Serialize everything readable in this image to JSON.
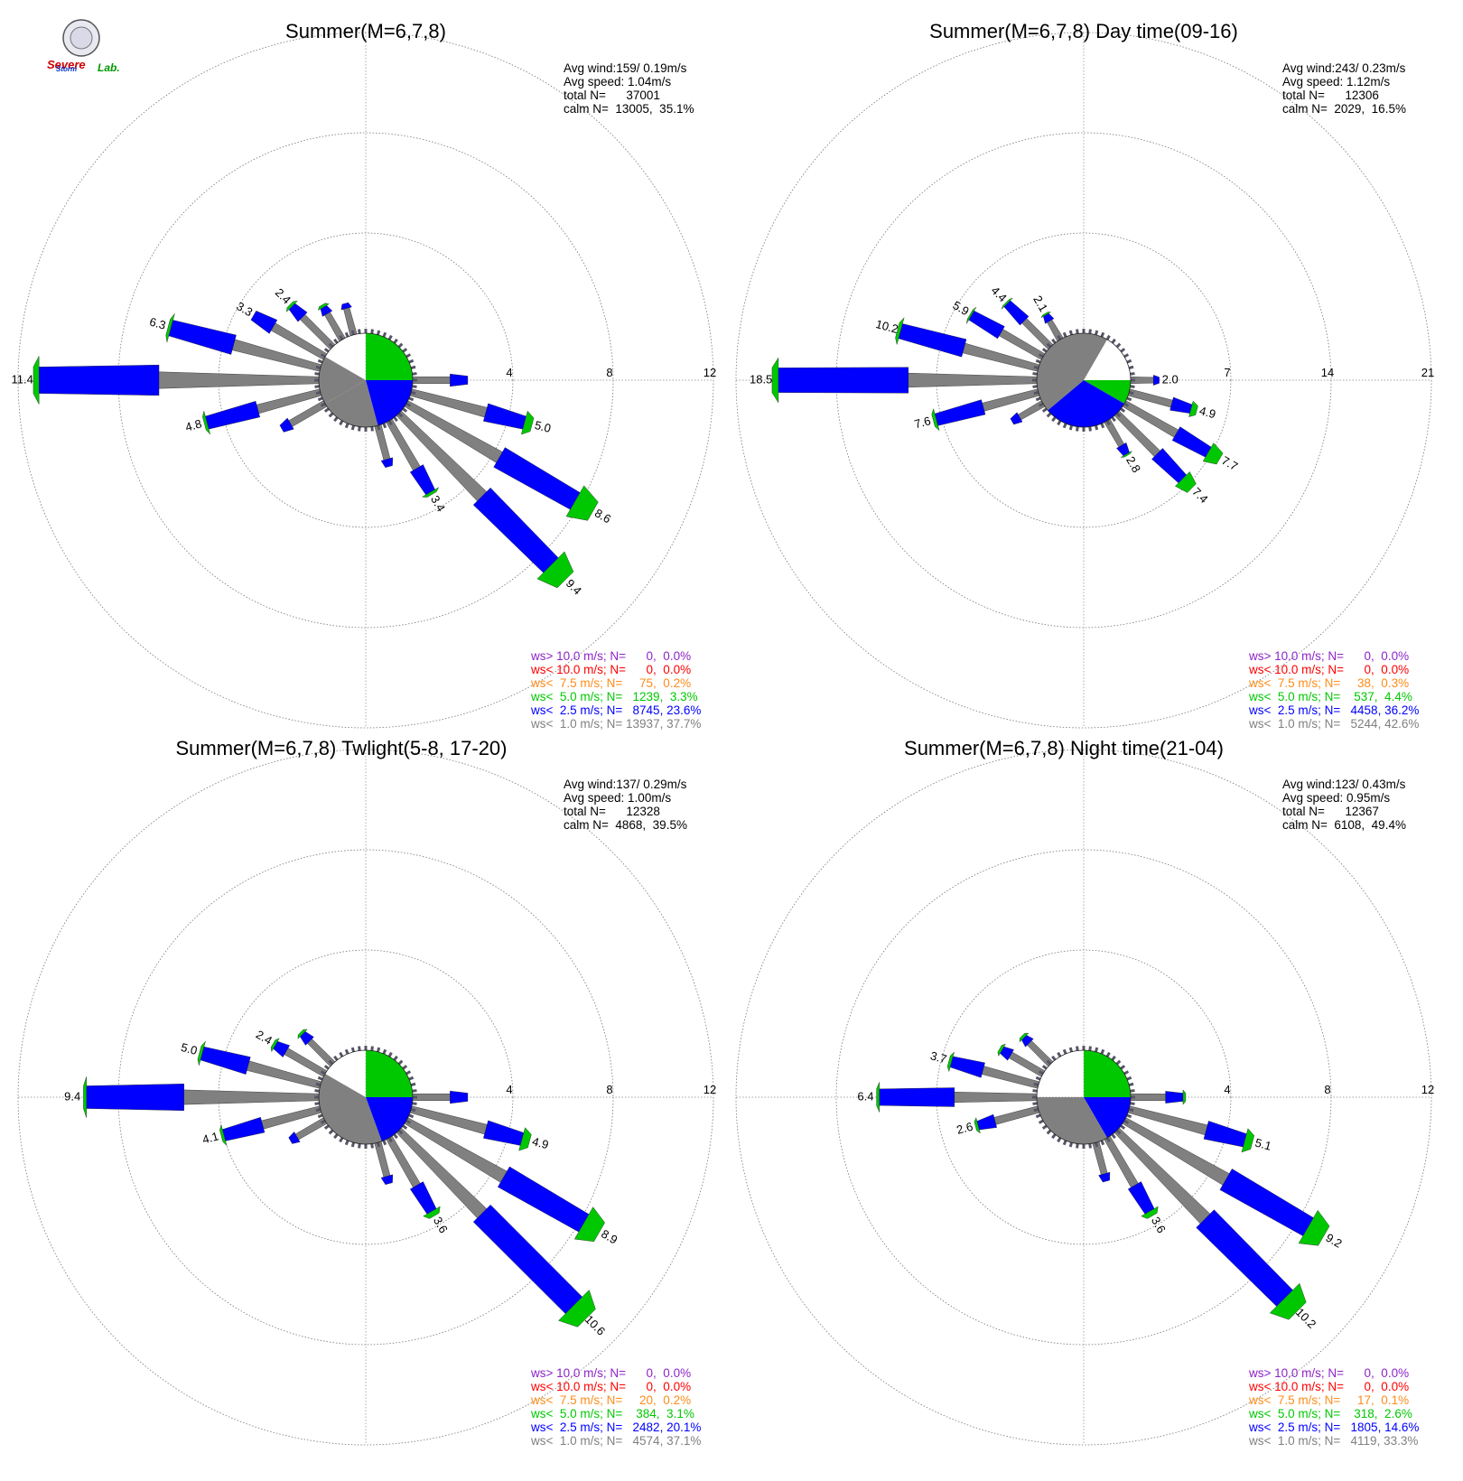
{
  "logo": {
    "text_top": "Severe",
    "text_bottom": "Storm",
    "text_lab": "Lab."
  },
  "colors": {
    "gt10": "#8e24c8",
    "lt10": "#ff0000",
    "lt7_5": "#ff8c1a",
    "lt5": "#00c800",
    "lt2_5": "#0000ff",
    "lt1": "#808080"
  },
  "chart_data": [
    {
      "type": "polar-bar",
      "title": "Summer(M=6,7,8)",
      "rlim": [
        0,
        12
      ],
      "rticks": [
        "4",
        "8",
        "12"
      ],
      "grid": true,
      "stats": [
        "Avg wind:159/ 0.19m/s",
        "Avg speed: 1.04m/s",
        "total N=      37001",
        "calm N=  13005,  35.1%"
      ],
      "legend": [
        "ws> 10.0 m/s; N=      0,  0.0%",
        "ws< 10.0 m/s; N=      0,  0.0%",
        "ws<  7.5 m/s; N=     75,  0.2%",
        "ws<  5.0 m/s; N=   1239,  3.3%",
        "ws<  2.5 m/s; N=   8745, 23.6%",
        "ws<  1.0 m/s; N= 13937, 37.7%"
      ],
      "calm_pie": [
        {
          "from": 0,
          "to": 90,
          "color": "#00c800"
        },
        {
          "from": 90,
          "to": 165,
          "color": "#0000ff"
        },
        {
          "from": 165,
          "to": 240,
          "color": "#808080"
        },
        {
          "from": 240,
          "to": 300,
          "color": "#808080"
        }
      ],
      "bars": [
        {
          "dir": 270,
          "total": 11.4,
          "label": "11.4",
          "grey": 6.4,
          "blue": 4.8,
          "green": 0.2
        },
        {
          "dir": 285,
          "total": 6.3,
          "label": "6.3",
          "grey": 3.6,
          "blue": 2.6,
          "green": 0.1
        },
        {
          "dir": 300,
          "total": 3.3,
          "label": "3.3",
          "grey": 2.4,
          "blue": 0.9,
          "green": 0.0
        },
        {
          "dir": 315,
          "total": 2.4,
          "label": "2.4",
          "grey": 1.7,
          "blue": 0.6,
          "green": 0.1
        },
        {
          "dir": 330,
          "total": 1.6,
          "label": "",
          "grey": 1.2,
          "blue": 0.3,
          "green": 0.1
        },
        {
          "dir": 345,
          "total": 1.3,
          "label": "",
          "grey": 1.1,
          "blue": 0.2,
          "green": 0.0
        },
        {
          "dir": 255,
          "total": 4.8,
          "label": "4.8",
          "grey": 2.6,
          "blue": 2.1,
          "green": 0.1
        },
        {
          "dir": 240,
          "total": 2.0,
          "label": "",
          "grey": 1.6,
          "blue": 0.4,
          "green": 0.0
        },
        {
          "dir": 90,
          "total": 2.2,
          "label": "",
          "grey": 1.5,
          "blue": 0.7,
          "green": 0.0
        },
        {
          "dir": 105,
          "total": 5.0,
          "label": "5.0",
          "grey": 3.1,
          "blue": 1.6,
          "green": 0.3
        },
        {
          "dir": 120,
          "total": 8.6,
          "label": "8.6",
          "grey": 4.3,
          "blue": 3.5,
          "green": 0.8
        },
        {
          "dir": 135,
          "total": 9.4,
          "label": "9.4",
          "grey": 4.7,
          "blue": 3.9,
          "green": 0.8
        },
        {
          "dir": 150,
          "total": 3.4,
          "label": "3.4",
          "grey": 2.2,
          "blue": 1.1,
          "green": 0.1
        },
        {
          "dir": 165,
          "total": 1.7,
          "label": "",
          "grey": 1.4,
          "blue": 0.3,
          "green": 0.0
        }
      ]
    },
    {
      "type": "polar-bar",
      "title": "Summer(M=6,7,8) Day time(09-16)",
      "rlim": [
        0,
        21
      ],
      "rticks": [
        "7",
        "14",
        "21"
      ],
      "grid": true,
      "stats": [
        "Avg wind:243/ 0.23m/s",
        "Avg speed: 1.12m/s",
        "total N=      12306",
        "calm N=  2029,  16.5%"
      ],
      "legend": [
        "ws> 10.0 m/s; N=      0,  0.0%",
        "ws< 10.0 m/s; N=      0,  0.0%",
        "ws<  7.5 m/s; N=     38,  0.3%",
        "ws<  5.0 m/s; N=    537,  4.4%",
        "ws<  2.5 m/s; N=   4458, 36.2%",
        "ws<  1.0 m/s; N=   5244, 42.6%"
      ],
      "calm_pie": [
        {
          "from": 0,
          "to": 30,
          "color": "#ffffff"
        },
        {
          "from": 30,
          "to": 90,
          "color": "#ffffff"
        },
        {
          "from": 90,
          "to": 120,
          "color": "#00c800"
        },
        {
          "from": 120,
          "to": 230,
          "color": "#0000ff"
        },
        {
          "from": 230,
          "to": 390,
          "color": "#808080"
        }
      ],
      "bars": [
        {
          "dir": 270,
          "total": 18.5,
          "label": "18.5",
          "grey": 9.0,
          "blue": 9.1,
          "green": 0.4
        },
        {
          "dir": 285,
          "total": 10.2,
          "label": "10.2",
          "grey": 5.4,
          "blue": 4.6,
          "green": 0.2
        },
        {
          "dir": 300,
          "total": 5.9,
          "label": "5.9",
          "grey": 3.4,
          "blue": 2.4,
          "green": 0.1
        },
        {
          "dir": 315,
          "total": 4.4,
          "label": "4.4",
          "grey": 2.6,
          "blue": 1.7,
          "green": 0.1
        },
        {
          "dir": 330,
          "total": 2.1,
          "label": "2.1",
          "grey": 1.5,
          "blue": 0.5,
          "green": 0.1
        },
        {
          "dir": 255,
          "total": 7.6,
          "label": "7.6",
          "grey": 4.0,
          "blue": 3.4,
          "green": 0.2
        },
        {
          "dir": 240,
          "total": 2.5,
          "label": "",
          "grey": 1.9,
          "blue": 0.6,
          "green": 0.0
        },
        {
          "dir": 90,
          "total": 2.0,
          "label": "2.0",
          "grey": 1.6,
          "blue": 0.4,
          "green": 0.0
        },
        {
          "dir": 105,
          "total": 4.9,
          "label": "4.9",
          "grey": 3.1,
          "blue": 1.4,
          "green": 0.4
        },
        {
          "dir": 120,
          "total": 7.7,
          "label": "7.7",
          "grey": 4.2,
          "blue": 2.6,
          "green": 0.9
        },
        {
          "dir": 135,
          "total": 7.4,
          "label": "7.4",
          "grey": 4.0,
          "blue": 2.5,
          "green": 0.9
        },
        {
          "dir": 150,
          "total": 2.8,
          "label": "2.8",
          "grey": 2.0,
          "blue": 0.7,
          "green": 0.1
        }
      ]
    },
    {
      "type": "polar-bar",
      "title": "Summer(M=6,7,8) Twlight(5-8, 17-20)",
      "rlim": [
        0,
        12
      ],
      "rticks": [
        "4",
        "8",
        "12"
      ],
      "grid": true,
      "stats": [
        "Avg wind:137/ 0.29m/s",
        "Avg speed: 1.00m/s",
        "total N=      12328",
        "calm N=  4868,  39.5%"
      ],
      "legend": [
        "ws> 10.0 m/s; N=      0,  0.0%",
        "ws< 10.0 m/s; N=      0,  0.0%",
        "ws<  7.5 m/s; N=     20,  0.2%",
        "ws<  5.0 m/s; N=    384,  3.1%",
        "ws<  2.5 m/s; N=   2482, 20.1%",
        "ws<  1.0 m/s; N=   4574, 37.1%"
      ],
      "calm_pie": [
        {
          "from": 0,
          "to": 90,
          "color": "#00c800"
        },
        {
          "from": 90,
          "to": 160,
          "color": "#0000ff"
        },
        {
          "from": 160,
          "to": 300,
          "color": "#808080"
        }
      ],
      "bars": [
        {
          "dir": 270,
          "total": 9.4,
          "label": "9.4",
          "grey": 5.4,
          "blue": 3.9,
          "green": 0.1
        },
        {
          "dir": 285,
          "total": 5.0,
          "label": "5.0",
          "grey": 3.0,
          "blue": 1.9,
          "green": 0.1
        },
        {
          "dir": 300,
          "total": 2.4,
          "label": "2.4",
          "grey": 1.8,
          "blue": 0.5,
          "green": 0.1
        },
        {
          "dir": 315,
          "total": 1.8,
          "label": "",
          "grey": 1.3,
          "blue": 0.4,
          "green": 0.1
        },
        {
          "dir": 255,
          "total": 4.1,
          "label": "4.1",
          "grey": 2.4,
          "blue": 1.6,
          "green": 0.1
        },
        {
          "dir": 240,
          "total": 1.6,
          "label": "",
          "grey": 1.3,
          "blue": 0.3,
          "green": 0.0
        },
        {
          "dir": 90,
          "total": 2.2,
          "label": "",
          "grey": 1.5,
          "blue": 0.7,
          "green": 0.0
        },
        {
          "dir": 105,
          "total": 4.9,
          "label": "4.9",
          "grey": 3.1,
          "blue": 1.5,
          "green": 0.3
        },
        {
          "dir": 120,
          "total": 8.9,
          "label": "8.9",
          "grey": 4.5,
          "blue": 3.7,
          "green": 0.7
        },
        {
          "dir": 135,
          "total": 10.6,
          "label": "10.6",
          "grey": 4.7,
          "blue": 5.2,
          "green": 0.7
        },
        {
          "dir": 150,
          "total": 3.6,
          "label": "3.6",
          "grey": 2.2,
          "blue": 1.2,
          "green": 0.2
        },
        {
          "dir": 165,
          "total": 1.7,
          "label": "",
          "grey": 1.4,
          "blue": 0.3,
          "green": 0.0
        }
      ]
    },
    {
      "type": "polar-bar",
      "title": "Summer(M=6,7,8) Night time(21-04)",
      "rlim": [
        0,
        12
      ],
      "rticks": [
        "4",
        "8",
        "12"
      ],
      "grid": true,
      "stats": [
        "Avg wind:123/ 0.43m/s",
        "Avg speed: 0.95m/s",
        "total N=      12367",
        "calm N=  6108,  49.4%"
      ],
      "legend": [
        "ws> 10.0 m/s; N=      0,  0.0%",
        "ws< 10.0 m/s; N=      0,  0.0%",
        "ws<  7.5 m/s; N=     17,  0.1%",
        "ws<  5.0 m/s; N=    318,  2.6%",
        "ws<  2.5 m/s; N=   1805, 14.6%",
        "ws<  1.0 m/s; N=   4119, 33.3%"
      ],
      "calm_pie": [
        {
          "from": 0,
          "to": 90,
          "color": "#00c800"
        },
        {
          "from": 90,
          "to": 150,
          "color": "#0000ff"
        },
        {
          "from": 150,
          "to": 270,
          "color": "#808080"
        }
      ],
      "bars": [
        {
          "dir": 270,
          "total": 6.4,
          "label": "6.4",
          "grey": 3.3,
          "blue": 3.0,
          "green": 0.1
        },
        {
          "dir": 285,
          "total": 3.7,
          "label": "3.7",
          "grey": 2.3,
          "blue": 1.3,
          "green": 0.1
        },
        {
          "dir": 300,
          "total": 2.0,
          "label": "",
          "grey": 1.5,
          "blue": 0.4,
          "green": 0.1
        },
        {
          "dir": 315,
          "total": 1.6,
          "label": "",
          "grey": 1.2,
          "blue": 0.3,
          "green": 0.1
        },
        {
          "dir": 255,
          "total": 2.6,
          "label": "2.6",
          "grey": 1.8,
          "blue": 0.7,
          "green": 0.1
        },
        {
          "dir": 90,
          "total": 2.2,
          "label": "",
          "grey": 1.4,
          "blue": 0.7,
          "green": 0.1
        },
        {
          "dir": 105,
          "total": 5.1,
          "label": "5.1",
          "grey": 3.2,
          "blue": 1.6,
          "green": 0.3
        },
        {
          "dir": 120,
          "total": 9.2,
          "label": "9.2",
          "grey": 4.7,
          "blue": 3.8,
          "green": 0.7
        },
        {
          "dir": 135,
          "total": 10.2,
          "label": "10.2",
          "grey": 5.0,
          "blue": 4.5,
          "green": 0.7
        },
        {
          "dir": 150,
          "total": 3.6,
          "label": "3.6",
          "grey": 2.2,
          "blue": 1.2,
          "green": 0.2
        },
        {
          "dir": 165,
          "total": 1.6,
          "label": "",
          "grey": 1.3,
          "blue": 0.3,
          "green": 0.0
        }
      ]
    }
  ]
}
